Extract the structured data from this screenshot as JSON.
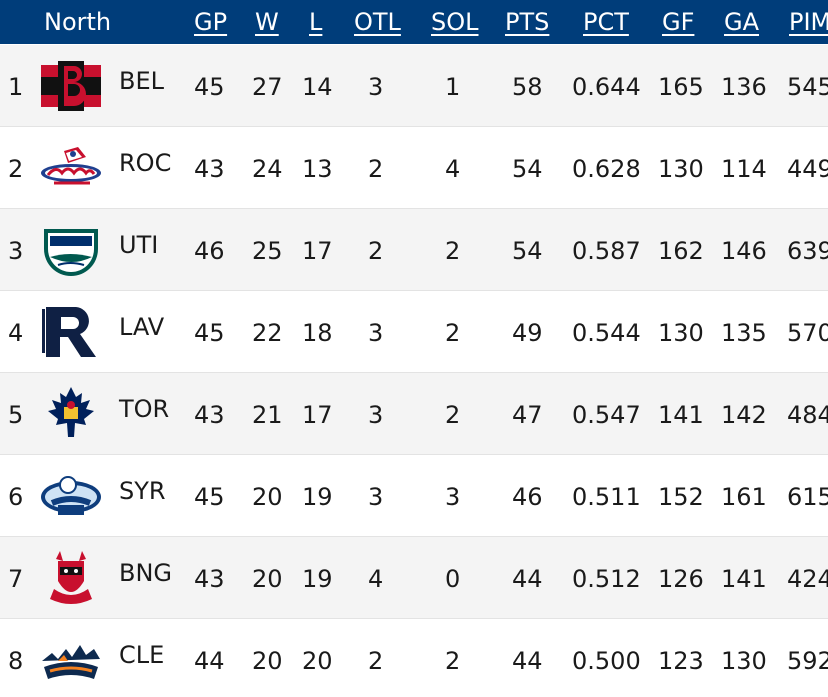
{
  "header": {
    "division": "North",
    "columns": {
      "gp": "GP",
      "w": "W",
      "l": "L",
      "otl": "OTL",
      "sol": "SOL",
      "pts": "PTS",
      "pct": "PCT",
      "gf": "GF",
      "ga": "GA",
      "pim": "PIM"
    }
  },
  "rows": [
    {
      "rank": "1",
      "team": "BEL",
      "logo": "belleville-senators-logo",
      "gp": "45",
      "w": "27",
      "l": "14",
      "otl": "3",
      "sol": "1",
      "pts": "58",
      "pct": "0.644",
      "gf": "165",
      "ga": "136",
      "pim": "545"
    },
    {
      "rank": "2",
      "team": "ROC",
      "logo": "rochester-americans-logo",
      "gp": "43",
      "w": "24",
      "l": "13",
      "otl": "2",
      "sol": "4",
      "pts": "54",
      "pct": "0.628",
      "gf": "130",
      "ga": "114",
      "pim": "449"
    },
    {
      "rank": "3",
      "team": "UTI",
      "logo": "utica-comets-logo",
      "gp": "46",
      "w": "25",
      "l": "17",
      "otl": "2",
      "sol": "2",
      "pts": "54",
      "pct": "0.587",
      "gf": "162",
      "ga": "146",
      "pim": "639"
    },
    {
      "rank": "4",
      "team": "LAV",
      "logo": "laval-rocket-logo",
      "gp": "45",
      "w": "22",
      "l": "18",
      "otl": "3",
      "sol": "2",
      "pts": "49",
      "pct": "0.544",
      "gf": "130",
      "ga": "135",
      "pim": "570"
    },
    {
      "rank": "5",
      "team": "TOR",
      "logo": "toronto-marlies-logo",
      "gp": "43",
      "w": "21",
      "l": "17",
      "otl": "3",
      "sol": "2",
      "pts": "47",
      "pct": "0.547",
      "gf": "141",
      "ga": "142",
      "pim": "484"
    },
    {
      "rank": "6",
      "team": "SYR",
      "logo": "syracuse-crunch-logo",
      "gp": "45",
      "w": "20",
      "l": "19",
      "otl": "3",
      "sol": "3",
      "pts": "46",
      "pct": "0.511",
      "gf": "152",
      "ga": "161",
      "pim": "615"
    },
    {
      "rank": "7",
      "team": "BNG",
      "logo": "binghamton-devils-logo",
      "gp": "43",
      "w": "20",
      "l": "19",
      "otl": "4",
      "sol": "0",
      "pts": "44",
      "pct": "0.512",
      "gf": "126",
      "ga": "141",
      "pim": "424"
    },
    {
      "rank": "8",
      "team": "CLE",
      "logo": "cleveland-monsters-logo",
      "gp": "44",
      "w": "20",
      "l": "20",
      "otl": "2",
      "sol": "2",
      "pts": "44",
      "pct": "0.500",
      "gf": "123",
      "ga": "130",
      "pim": "592"
    }
  ]
}
